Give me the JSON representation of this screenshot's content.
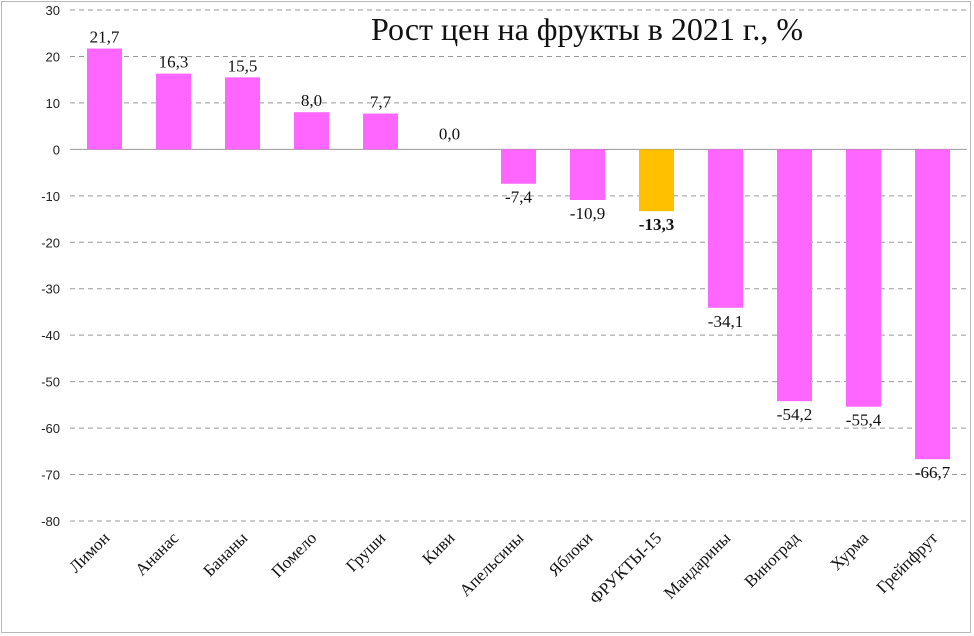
{
  "chart_data": {
    "type": "bar",
    "title": "Рост цен на фрукты в 2021 г., %",
    "xlabel": "",
    "ylabel": "",
    "ylim": [
      -80,
      30
    ],
    "yticks": [
      30,
      20,
      10,
      0,
      -10,
      -20,
      -30,
      -40,
      -50,
      -60,
      -70,
      -80
    ],
    "grid": true,
    "legend": "none",
    "categories": [
      "Лимон",
      "Ананас",
      "Бананы",
      "Помело",
      "Груши",
      "Киви",
      "Апельсины",
      "Яблоки",
      "ФРУКТЫ-15",
      "Мандарины",
      "Виноград",
      "Хурма",
      "Грейпфрут"
    ],
    "values": [
      21.7,
      16.3,
      15.5,
      8.0,
      7.7,
      0.0,
      -7.4,
      -10.9,
      -13.3,
      -34.1,
      -54.2,
      -55.4,
      -66.7
    ],
    "value_labels": [
      "21,7",
      "16,3",
      "15,5",
      "8,0",
      "7,7",
      "0,0",
      "-7,4",
      "-10,9",
      "-13,3",
      "-34,1",
      "-54,2",
      "-55,4",
      "-66,7"
    ],
    "highlight_category": "ФРУКТЫ-15",
    "colors": {
      "bar": "#ff66ff",
      "highlight": "#ffc000",
      "grid": "#999999"
    }
  }
}
